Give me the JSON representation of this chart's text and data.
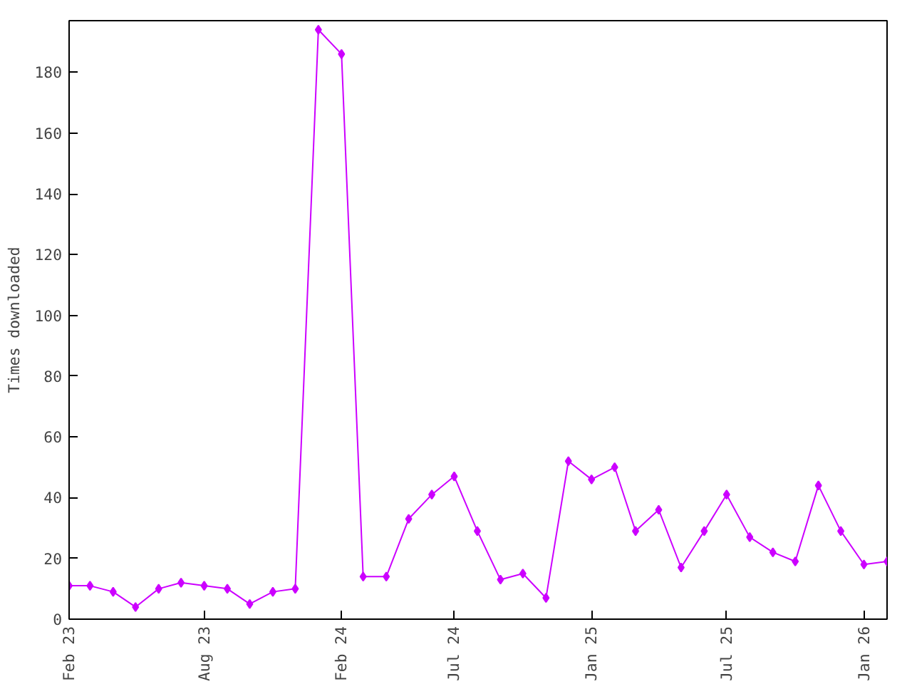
{
  "chart_data": {
    "type": "line",
    "ylabel": "Times downloaded",
    "x": [
      "2023-02",
      "2023-03",
      "2023-04",
      "2023-05",
      "2023-06",
      "2023-07",
      "2023-08",
      "2023-09",
      "2023-10",
      "2023-11",
      "2023-12",
      "2024-01",
      "2024-02",
      "2024-03",
      "2024-04",
      "2024-05",
      "2024-06",
      "2024-07",
      "2024-08",
      "2024-09",
      "2024-10",
      "2024-11",
      "2024-12",
      "2025-01",
      "2025-02",
      "2025-03",
      "2025-04",
      "2025-05",
      "2025-06",
      "2025-07",
      "2025-08",
      "2025-09",
      "2025-10",
      "2025-11",
      "2025-12",
      "2026-01",
      "2026-02"
    ],
    "series": [
      {
        "color": "#cc00ff",
        "values": [
          11,
          11,
          9,
          4,
          10,
          12,
          11,
          10,
          5,
          9,
          10,
          194,
          186,
          14,
          14,
          33,
          41,
          47,
          29,
          13,
          15,
          7,
          52,
          46,
          50,
          29,
          36,
          17,
          29,
          41,
          27,
          22,
          19,
          44,
          29,
          18,
          19
        ]
      }
    ],
    "xlim": [
      "2023-02",
      "2026-02"
    ],
    "xticks": [
      {
        "value": "2023-02",
        "label": "Feb 23"
      },
      {
        "value": "2023-08",
        "label": "Aug 23"
      },
      {
        "value": "2024-02",
        "label": "Feb 24"
      },
      {
        "value": "2024-07",
        "label": "Jul 24"
      },
      {
        "value": "2025-01",
        "label": "Jan 25"
      },
      {
        "value": "2025-07",
        "label": "Jul 25"
      },
      {
        "value": "2026-01",
        "label": "Jan 26"
      }
    ],
    "ylim": [
      0,
      197
    ],
    "yticks": [
      0,
      20,
      40,
      60,
      80,
      100,
      120,
      140,
      160,
      180
    ],
    "marker": "diamond",
    "line_style": "solid"
  }
}
